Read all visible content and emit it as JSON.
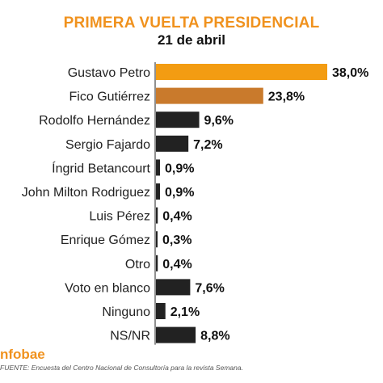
{
  "header": {
    "title": "PRIMERA VUELTA PRESIDENCIAL",
    "subtitle": "21 de abril"
  },
  "footer": {
    "brand": "nfobae",
    "source": "FUENTE: Encuesta del Centro Nacional de Consultoría para la revista Semana."
  },
  "chart_data": {
    "type": "bar",
    "orientation": "horizontal",
    "title": "PRIMERA VUELTA PRESIDENCIAL",
    "subtitle": "21 de abril",
    "categories": [
      "Gustavo Petro",
      "Fico Gutiérrez",
      "Rodolfo Hernández",
      "Sergio Fajardo",
      "Íngrid Betancourt",
      "John Milton Rodriguez",
      "Luis Pérez",
      "Enrique Gómez",
      "Otro",
      "Voto en blanco",
      "Ninguno",
      "NS/NR"
    ],
    "values": [
      38.0,
      23.8,
      9.6,
      7.2,
      0.9,
      0.9,
      0.4,
      0.3,
      0.4,
      7.6,
      2.1,
      8.8
    ],
    "value_labels": [
      "38,0%",
      "23,8%",
      "9,6%",
      "7,2%",
      "0,9%",
      "0,9%",
      "0,4%",
      "0,3%",
      "0,4%",
      "7,6%",
      "2,1%",
      "8,8%"
    ],
    "colors": [
      "#f39c12",
      "#c97a2c",
      "#222222",
      "#222222",
      "#222222",
      "#222222",
      "#222222",
      "#222222",
      "#222222",
      "#222222",
      "#222222",
      "#222222"
    ],
    "xlim": [
      0,
      38.0
    ],
    "grid": false,
    "legend": "none"
  }
}
